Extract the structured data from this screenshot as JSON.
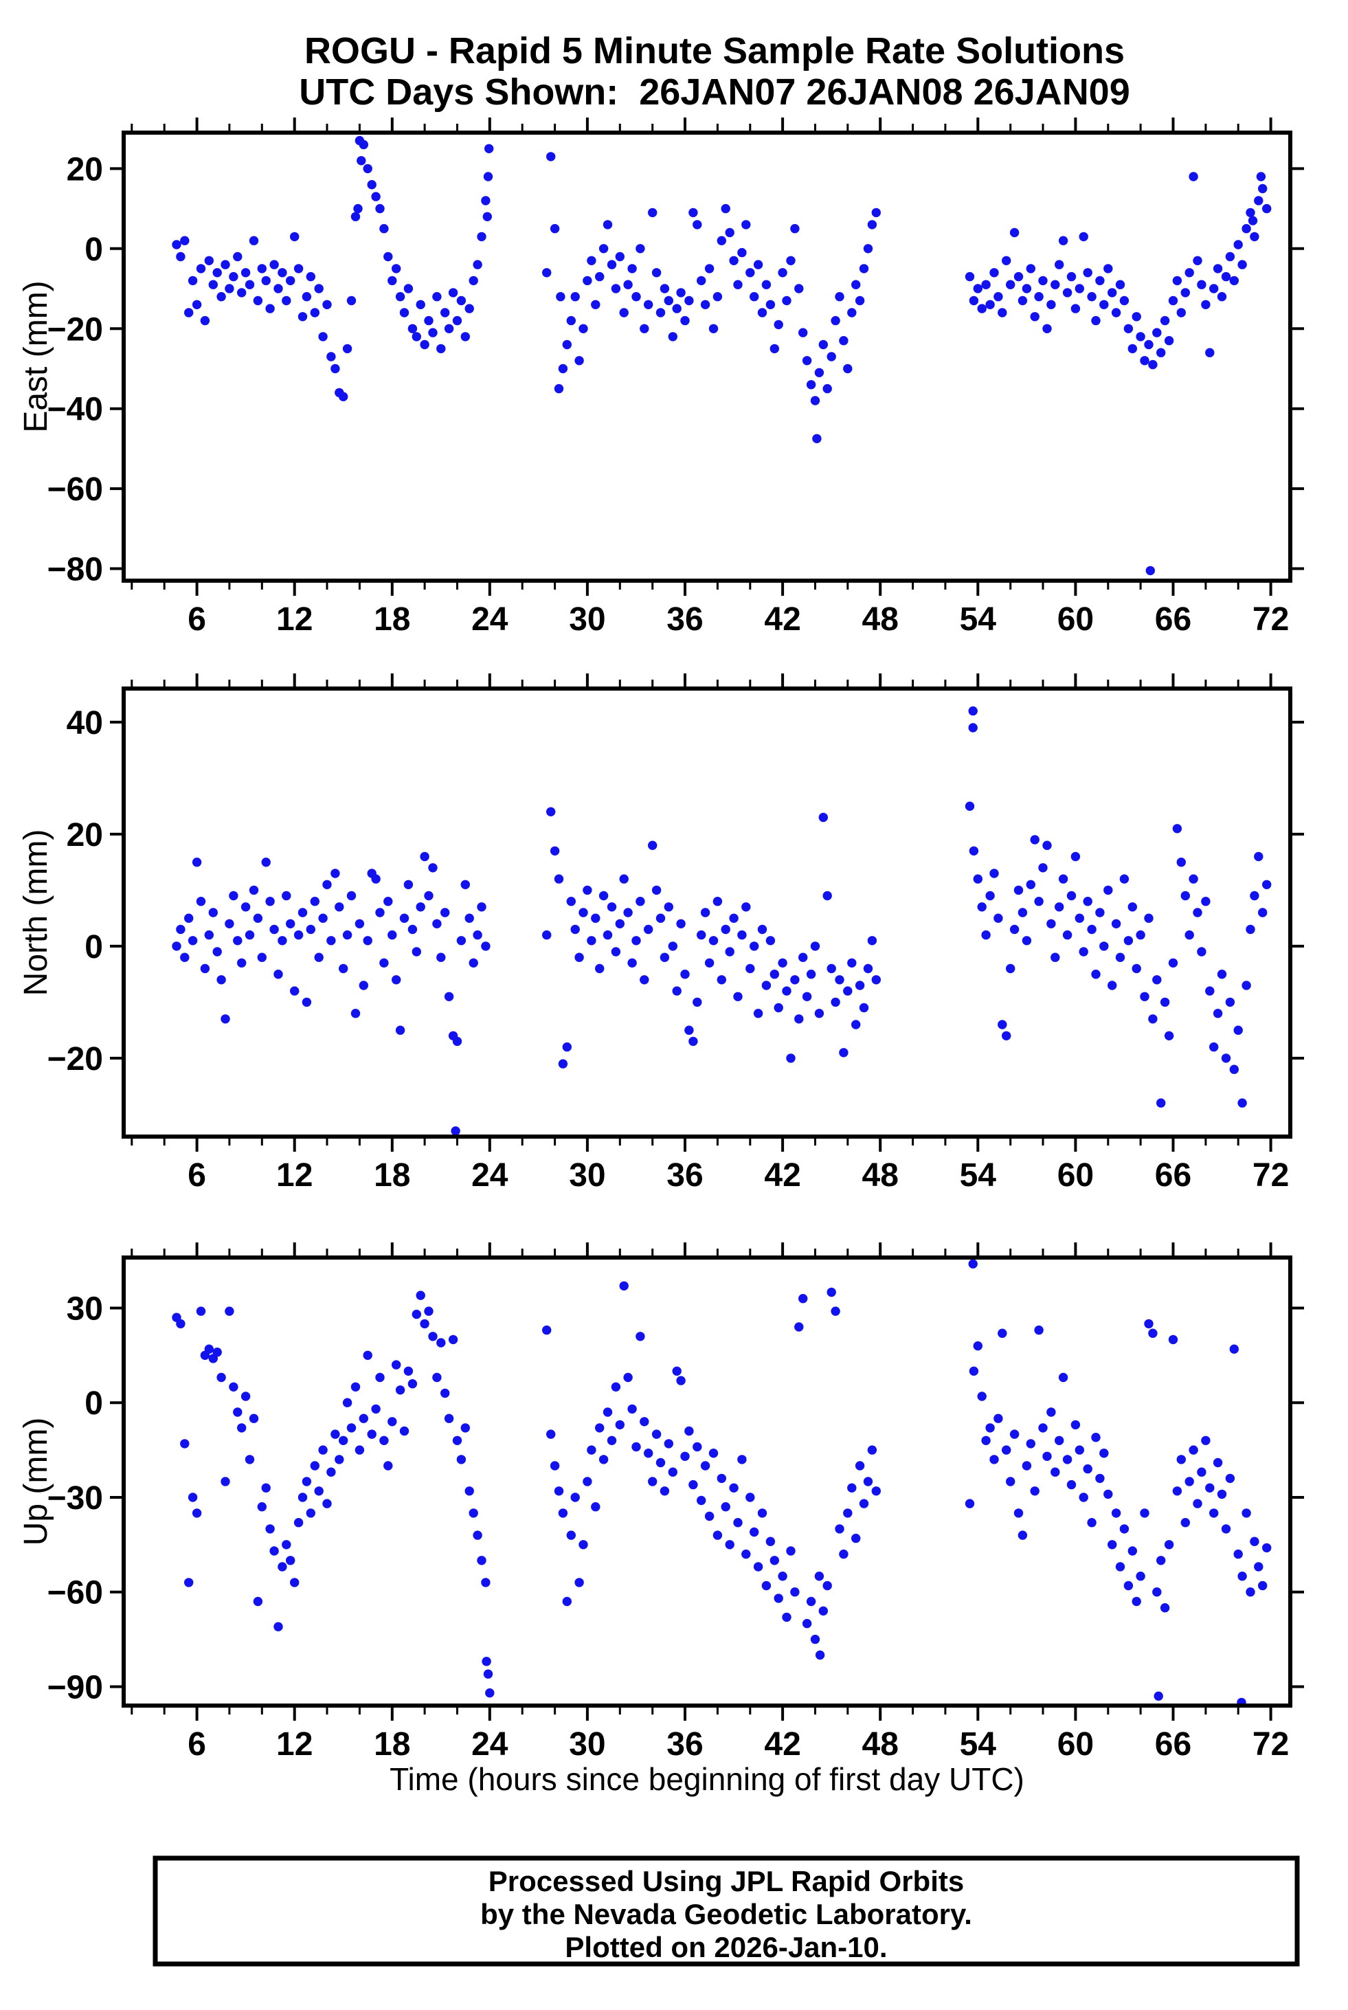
{
  "title": {
    "line1": "ROGU - Rapid 5 Minute Sample Rate Solutions",
    "line2": "UTC Days Shown:  26JAN07 26JAN08 26JAN09"
  },
  "xlabel": "Time (hours since beginning of first day UTC)",
  "footer": {
    "line1": "Processed Using JPL Rapid Orbits",
    "line2": "by the Nevada Geodetic Laboratory.",
    "line3": "Plotted on 2026-Jan-10."
  },
  "colors": {
    "dot": "#1212ee",
    "frame": "#000000",
    "background": "#ffffff"
  },
  "chart_data": [
    {
      "type": "scatter",
      "ylabel": "East (mm)",
      "ylim": [
        -83,
        29
      ],
      "yticks": [
        20,
        0,
        -20,
        -40,
        -60,
        -80
      ],
      "xlim": [
        1.5,
        73.2
      ],
      "xticks": [
        6,
        12,
        18,
        24,
        30,
        36,
        42,
        48,
        54,
        60,
        66,
        72
      ],
      "xminor_step": 2,
      "segments": [
        {
          "x0": 4.75,
          "dx": 0.25,
          "y": [
            1,
            -2,
            2,
            -16,
            -8,
            -14,
            -5,
            -18,
            -3,
            -9,
            -6,
            -12,
            -4,
            -10,
            -7,
            -2,
            -11,
            -6,
            -9,
            2,
            -13,
            -5,
            -8,
            -15,
            -4,
            -10,
            -6,
            -13,
            -8,
            3,
            -5,
            -17,
            -12,
            -7,
            -16,
            -10,
            -22,
            -14,
            -27,
            -30,
            -36,
            -37,
            -25,
            -13,
            8,
            27,
            26,
            20,
            16,
            13,
            10,
            5,
            -2,
            -8,
            -5,
            -12,
            -16,
            -10,
            -20,
            -22,
            -14,
            -24,
            -18,
            -21,
            -12,
            -25,
            -16,
            -20,
            -11,
            -18,
            -13,
            -22,
            -15,
            -8,
            -4,
            3,
            12
          ]
        },
        {
          "x0": 27.5,
          "dx": 0.25,
          "y": [
            -6,
            23,
            5,
            -35,
            -30,
            -24,
            -18,
            -12,
            -28,
            -20,
            -8,
            -3,
            -14,
            -7,
            0,
            6,
            -4,
            -10,
            -2,
            -16,
            -9,
            -5,
            -12,
            0,
            -20,
            -14,
            9,
            -6,
            -16,
            -10,
            -13,
            -22,
            -15,
            -11,
            -18,
            -13,
            9,
            6,
            -8,
            -14,
            -5,
            -20,
            -12,
            2,
            10,
            4,
            -3,
            -9,
            -1,
            6,
            -6,
            -12,
            -4,
            -16,
            -9,
            -14,
            -25,
            -19,
            -6,
            -13,
            -3,
            5,
            -10,
            -21,
            -28,
            -34,
            -38,
            -31,
            -24,
            -35,
            -27,
            -18,
            -12,
            -23,
            -30,
            -16,
            -9,
            -13,
            -5,
            0,
            6,
            9
          ]
        },
        {
          "x0": 53.5,
          "dx": 0.25,
          "y": [
            -7,
            -13,
            -10,
            -15,
            -9,
            -14,
            -6,
            -12,
            -16,
            -3,
            -9,
            4,
            -7,
            -13,
            -10,
            -5,
            -17,
            -12,
            -8,
            -20,
            -14,
            -9,
            -4,
            2,
            -11,
            -7,
            -15,
            -10,
            3,
            -6,
            -12,
            -18,
            -8,
            -14,
            -5,
            -11,
            -16,
            -9,
            -13,
            -20,
            -25,
            -17,
            -22,
            -28,
            -24,
            -29,
            -21,
            -26,
            -18,
            -23,
            -13,
            -8,
            -16,
            -11,
            -6,
            18,
            -3,
            -9,
            -14,
            -26,
            -10,
            -5,
            -12,
            -7,
            -2,
            -8,
            1,
            -4,
            5,
            9,
            3,
            12,
            15,
            10
          ]
        }
      ],
      "extra_points": [
        [
          16.1,
          22
        ],
        [
          15.9,
          10
        ],
        [
          23.85,
          8
        ],
        [
          23.9,
          18
        ],
        [
          23.95,
          25
        ],
        [
          28.35,
          -12
        ],
        [
          44.1,
          -47.5
        ],
        [
          64.6,
          -80.5
        ],
        [
          71.4,
          18
        ],
        [
          70.9,
          7
        ]
      ]
    },
    {
      "type": "scatter",
      "ylabel": "North (mm)",
      "ylim": [
        -34,
        46
      ],
      "yticks": [
        40,
        20,
        0,
        -20
      ],
      "xlim": [
        1.5,
        73.2
      ],
      "xticks": [
        6,
        12,
        18,
        24,
        30,
        36,
        42,
        48,
        54,
        60,
        66,
        72
      ],
      "xminor_step": 2,
      "segments": [
        {
          "x0": 4.75,
          "dx": 0.25,
          "y": [
            0,
            3,
            -2,
            5,
            1,
            15,
            8,
            -4,
            2,
            6,
            -1,
            -6,
            -13,
            4,
            9,
            1,
            -3,
            7,
            2,
            10,
            5,
            -2,
            15,
            8,
            3,
            -5,
            1,
            9,
            4,
            -8,
            2,
            6,
            -10,
            3,
            8,
            -2,
            5,
            11,
            1,
            13,
            7,
            -4,
            2,
            9,
            -12,
            4,
            -7,
            1,
            13,
            12,
            6,
            -3,
            8,
            2,
            -6,
            -15,
            5,
            11,
            3,
            -1,
            7,
            16,
            9,
            14,
            4,
            -2,
            6,
            -9,
            -16,
            -17,
            1,
            11,
            5,
            -3,
            2,
            7,
            0
          ]
        },
        {
          "x0": 27.5,
          "dx": 0.25,
          "y": [
            2,
            24,
            17,
            12,
            -21,
            -18,
            8,
            3,
            -2,
            6,
            10,
            1,
            5,
            -4,
            9,
            2,
            7,
            -1,
            4,
            12,
            6,
            -3,
            1,
            8,
            -6,
            3,
            18,
            10,
            5,
            -2,
            7,
            0,
            -8,
            4,
            -5,
            -15,
            -17,
            -10,
            2,
            6,
            -3,
            1,
            8,
            -6,
            3,
            -1,
            5,
            -9,
            2,
            7,
            -4,
            0,
            -12,
            3,
            -7,
            1,
            -5,
            -11,
            -3,
            -8,
            -20,
            -6,
            -13,
            -2,
            -9,
            -5,
            0,
            -12,
            23,
            9,
            -4,
            -10,
            -6,
            -19,
            -8,
            -3,
            -14,
            -7,
            -11,
            -4,
            1,
            -6
          ]
        },
        {
          "x0": 53.5,
          "dx": 0.25,
          "y": [
            25,
            17,
            12,
            7,
            2,
            9,
            13,
            5,
            -14,
            -16,
            -4,
            3,
            10,
            6,
            1,
            11,
            19,
            8,
            14,
            18,
            4,
            -2,
            7,
            12,
            2,
            9,
            16,
            5,
            -1,
            8,
            3,
            -5,
            6,
            0,
            10,
            -7,
            4,
            -2,
            12,
            1,
            7,
            -4,
            2,
            -9,
            5,
            -13,
            -6,
            -28,
            -10,
            -16,
            -3,
            21,
            15,
            9,
            2,
            12,
            6,
            -1,
            8,
            -8,
            -18,
            -12,
            -5,
            -20,
            -10,
            -22,
            -15,
            -28,
            -7,
            3,
            9,
            16,
            6,
            11
          ]
        }
      ],
      "extra_points": [
        [
          21.9,
          -33
        ],
        [
          53.7,
          42
        ],
        [
          53.7,
          39
        ]
      ]
    },
    {
      "type": "scatter",
      "ylabel": "Up (mm)",
      "ylim": [
        -96,
        46
      ],
      "yticks": [
        30,
        0,
        -30,
        -60,
        -90
      ],
      "xlim": [
        1.5,
        73.2
      ],
      "xticks": [
        6,
        12,
        18,
        24,
        30,
        36,
        42,
        48,
        54,
        60,
        66,
        72
      ],
      "xminor_step": 2,
      "segments": [
        {
          "x0": 4.75,
          "dx": 0.25,
          "y": [
            27,
            25,
            -13,
            -57,
            -30,
            -35,
            29,
            15,
            17,
            14,
            16,
            8,
            -25,
            29,
            5,
            -3,
            -8,
            2,
            -18,
            -5,
            -63,
            -33,
            -27,
            -40,
            -47,
            -71,
            -52,
            -45,
            -50,
            -57,
            -38,
            -30,
            -25,
            -35,
            -20,
            -28,
            -15,
            -32,
            -22,
            -10,
            -18,
            -12,
            0,
            -8,
            5,
            -15,
            -5,
            15,
            -10,
            -2,
            8,
            -12,
            -20,
            -6,
            12,
            4,
            -9,
            10,
            6,
            28,
            34,
            25,
            29,
            21,
            8,
            19,
            3,
            -5,
            20,
            -12,
            -18,
            -8,
            -28,
            -35,
            -42,
            -50,
            -57
          ]
        },
        {
          "x0": 27.5,
          "dx": 0.25,
          "y": [
            23,
            -10,
            -20,
            -28,
            -35,
            -63,
            -42,
            -30,
            -57,
            -45,
            -25,
            -15,
            -33,
            -8,
            -18,
            -3,
            -12,
            5,
            -7,
            37,
            8,
            -2,
            -14,
            21,
            -6,
            -16,
            -25,
            -10,
            -19,
            -28,
            -13,
            -22,
            10,
            7,
            -17,
            -9,
            -26,
            -14,
            -31,
            -20,
            -36,
            -16,
            -42,
            -24,
            -33,
            -45,
            -27,
            -38,
            -18,
            -48,
            -30,
            -41,
            -52,
            -35,
            -58,
            -44,
            -50,
            -62,
            -55,
            -68,
            -47,
            -60,
            24,
            33,
            -70,
            -63,
            -75,
            -55,
            -66,
            -58,
            35,
            29,
            -40,
            -48,
            -35,
            -27,
            -43,
            -20,
            -32,
            -25,
            -15,
            -28
          ]
        },
        {
          "x0": 53.5,
          "dx": 0.25,
          "y": [
            -32,
            10,
            18,
            2,
            -12,
            -8,
            -18,
            -5,
            22,
            -15,
            -25,
            -10,
            -35,
            -42,
            -20,
            -13,
            -28,
            23,
            -8,
            -17,
            -3,
            -22,
            -12,
            8,
            -18,
            -26,
            -7,
            -15,
            -30,
            -21,
            -38,
            -11,
            -24,
            -16,
            -29,
            -45,
            -35,
            -52,
            -40,
            -58,
            -47,
            -63,
            -55,
            -35,
            25,
            22,
            -60,
            -50,
            -65,
            -45,
            20,
            -28,
            -18,
            -38,
            -25,
            -15,
            -32,
            -22,
            -12,
            -27,
            -35,
            -19,
            -29,
            -40,
            -24,
            17,
            -48,
            -55,
            -35,
            -60,
            -44,
            -52,
            -58,
            -46
          ]
        }
      ],
      "extra_points": [
        [
          23.8,
          -82
        ],
        [
          23.9,
          -86
        ],
        [
          24.0,
          -92
        ],
        [
          44.3,
          -80
        ],
        [
          53.7,
          44
        ],
        [
          65.1,
          -93
        ],
        [
          70.2,
          -95
        ]
      ]
    }
  ]
}
